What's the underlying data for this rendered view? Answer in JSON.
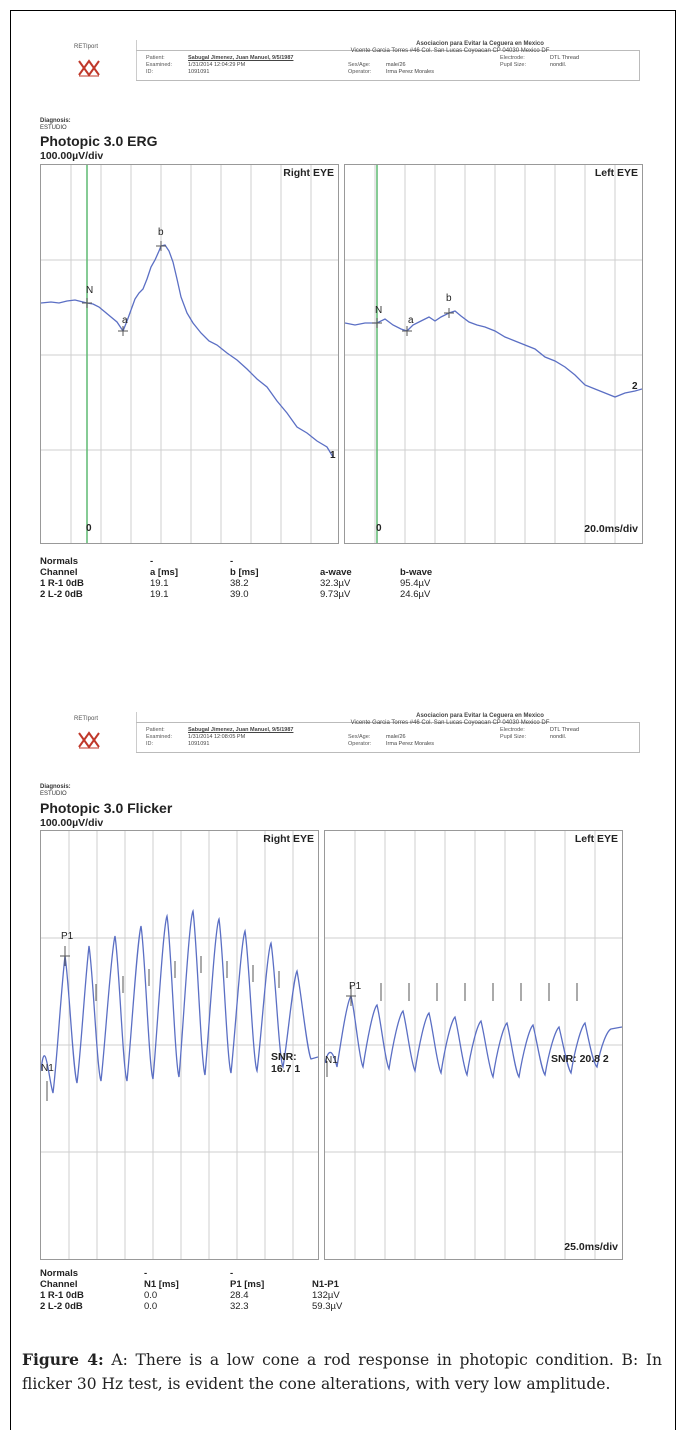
{
  "header": {
    "brand": "RETIport",
    "org": "Asociacion para Evitar la Ceguera en Mexico",
    "address": "Vicente Garcia Torres #46 Col. San Lucas Coyoacan CP 04030 Mexico DF",
    "patient_label": "Patient:",
    "patient_value": "Sabugal Jimenez, Juan Manuel, 9/5/1987",
    "examined_label": "Examined:",
    "id_label": "ID:",
    "id_value": "1091091",
    "sexage_label": "Sex/Age:",
    "sexage_value": "male/26",
    "operator_label": "Operator:",
    "operator_value": "Irma Perez Morales",
    "electrode_label": "Electrode:",
    "electrode_value": "DTL Thread",
    "pupil_label": "Pupil Size:",
    "pupil_value": "nondil."
  },
  "report_a": {
    "examined_value": "1/31/2014 12:04:29 PM",
    "diagnosis_label": "Diagnosis:",
    "diagnosis_value": "ESTUDIO",
    "title": "Photopic 3.0 ERG",
    "scale_label": "100.00µV/div",
    "right_eye_label": "Right EYE",
    "left_eye_label": "Left EYE",
    "time_label": "20.0ms/div",
    "zero_label": "0",
    "marker_N": "N",
    "marker_a": "a",
    "marker_b": "b",
    "trace_1": "1",
    "trace_2": "2",
    "table": {
      "normals": "Normals",
      "dash": "-",
      "headers": [
        "Channel",
        "a [ms]",
        "b [ms]",
        "a-wave",
        "b-wave"
      ],
      "rows": [
        [
          "1 R-1 0dB",
          "19.1",
          "38.2",
          "32.3µV",
          "95.4µV"
        ],
        [
          "2 L-2 0dB",
          "19.1",
          "39.0",
          "9.73µV",
          "24.6µV"
        ]
      ]
    }
  },
  "report_b": {
    "examined_value": "1/31/2014 12:08:05 PM",
    "diagnosis_label": "Diagnosis:",
    "diagnosis_value": "ESTUDIO",
    "title": "Photopic 3.0 Flicker",
    "scale_label": "100.00µV/div",
    "right_eye_label": "Right EYE",
    "left_eye_label": "Left EYE",
    "time_label": "25.0ms/div",
    "marker_P1": "P1",
    "marker_N1": "N1",
    "snr_right": "SNR: 16.7 1",
    "snr_left": "SNR: 20.8 2",
    "table": {
      "normals": "Normals",
      "dash": "-",
      "headers": [
        "Channel",
        "N1 [ms]",
        "P1 [ms]",
        "N1-P1"
      ],
      "rows": [
        [
          "1 R-1 0dB",
          "0.0",
          "28.4",
          "132µV"
        ],
        [
          "2 L-2 0dB",
          "0.0",
          "32.3",
          "59.3µV"
        ]
      ]
    }
  },
  "caption": {
    "figure_label": "Figure 4:",
    "text": " A: There is a low cone a rod response in photopic condition. B: In flicker 30 Hz test, is evident the cone alterations, with very low amplitude."
  },
  "colors": {
    "trace": "#5b6fc4",
    "marker_line": "#5fba72",
    "grid": "#cccccc"
  }
}
